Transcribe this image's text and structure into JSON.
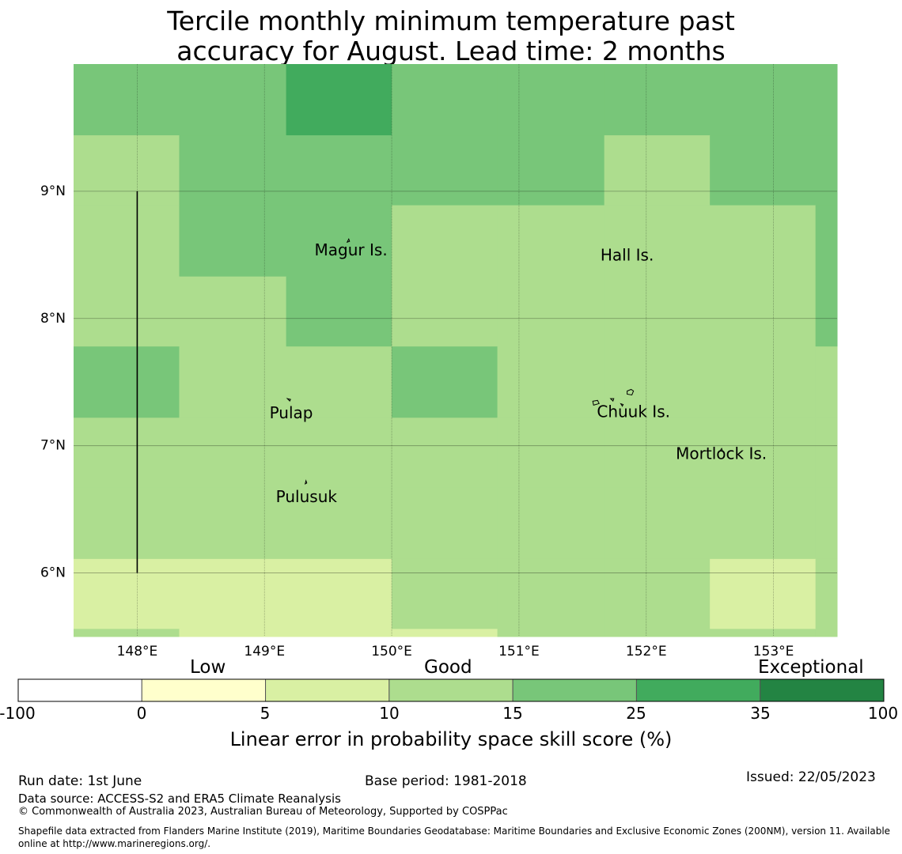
{
  "title": {
    "line1": "Tercile monthly minimum temperature past",
    "line2": "accuracy for August. Lead time: 2 months"
  },
  "map": {
    "lon_range": [
      147.5,
      153.5
    ],
    "lat_range": [
      5.5,
      10.0
    ],
    "lon_ticks": [
      {
        "value": 148,
        "label": "148°E"
      },
      {
        "value": 149,
        "label": "149°E"
      },
      {
        "value": 150,
        "label": "150°E"
      },
      {
        "value": 151,
        "label": "151°E"
      },
      {
        "value": 152,
        "label": "152°E"
      },
      {
        "value": 153,
        "label": "153°E"
      }
    ],
    "lat_ticks": [
      {
        "value": 9,
        "label": "9°N"
      },
      {
        "value": 8,
        "label": "8°N"
      },
      {
        "value": 7,
        "label": "7°N"
      },
      {
        "value": 6,
        "label": "6°N"
      }
    ],
    "places": [
      {
        "name": "Magur Is.",
        "lon": 149.68,
        "lat": 8.53
      },
      {
        "name": "Hall Is.",
        "lon": 151.85,
        "lat": 8.49
      },
      {
        "name": "Pulap",
        "lon": 149.21,
        "lat": 7.25
      },
      {
        "name": "Chuuk Is.",
        "lon": 151.9,
        "lat": 7.26
      },
      {
        "name": "Mortlock Is.",
        "lon": 152.59,
        "lat": 6.93
      },
      {
        "name": "Pulusuk",
        "lon": 149.33,
        "lat": 6.59
      }
    ],
    "boundary_line": {
      "lon": 148.0,
      "lat_from": 6.0,
      "lat_to": 9.0
    },
    "grid": {
      "lon_edges": [
        147.5,
        148.33,
        149.17,
        150.0,
        150.83,
        151.67,
        152.5,
        153.33,
        153.5
      ],
      "lat_edges": [
        10.0,
        9.44,
        8.89,
        8.33,
        7.78,
        7.22,
        6.67,
        6.11,
        5.56,
        5.5
      ],
      "classes": [
        [
          4,
          4,
          5,
          4,
          4,
          4,
          4,
          4
        ],
        [
          3,
          4,
          4,
          4,
          4,
          3,
          4,
          4
        ],
        [
          3,
          4,
          4,
          3,
          3,
          3,
          3,
          4
        ],
        [
          3,
          3,
          4,
          3,
          3,
          3,
          3,
          4
        ],
        [
          4,
          3,
          3,
          4,
          3,
          3,
          3,
          3
        ],
        [
          3,
          3,
          3,
          3,
          3,
          3,
          3,
          3
        ],
        [
          3,
          3,
          3,
          3,
          3,
          3,
          3,
          3
        ],
        [
          2,
          2,
          2,
          3,
          3,
          3,
          2,
          3
        ],
        [
          3,
          2,
          2,
          2,
          3,
          3,
          3,
          3
        ]
      ]
    }
  },
  "colorbar": {
    "category_labels": [
      "Low",
      "Good",
      "Exceptional"
    ],
    "ticks": [
      "-100",
      "0",
      "5",
      "10",
      "15",
      "25",
      "35",
      "100"
    ],
    "colors": [
      "#ffffff",
      "#ffffcc",
      "#d9f0a3",
      "#addd8e",
      "#78c679",
      "#41ab5d",
      "#238443"
    ],
    "label": "Linear error in probability space skill score (%)"
  },
  "footer": {
    "run_date": "Run date: 1st June",
    "base_period": "Base period: 1981-2018",
    "issued": "Issued: 22/05/2023",
    "data_source": "Data source: ACCESS-S2 and ERA5 Climate Reanalysis",
    "copyright": "© Commonwealth of Australia 2023, Australian Bureau of Meteorology, Supported by COSPPac",
    "shapefile_line1": "Shapefile data extracted from Flanders Marine Institute (2019), Maritime Boundaries Geodatabase: Maritime Boundaries and Exclusive Economic Zones (200NM), version 11. Available",
    "shapefile_line2": "online at http://www.marineregions.org/."
  }
}
